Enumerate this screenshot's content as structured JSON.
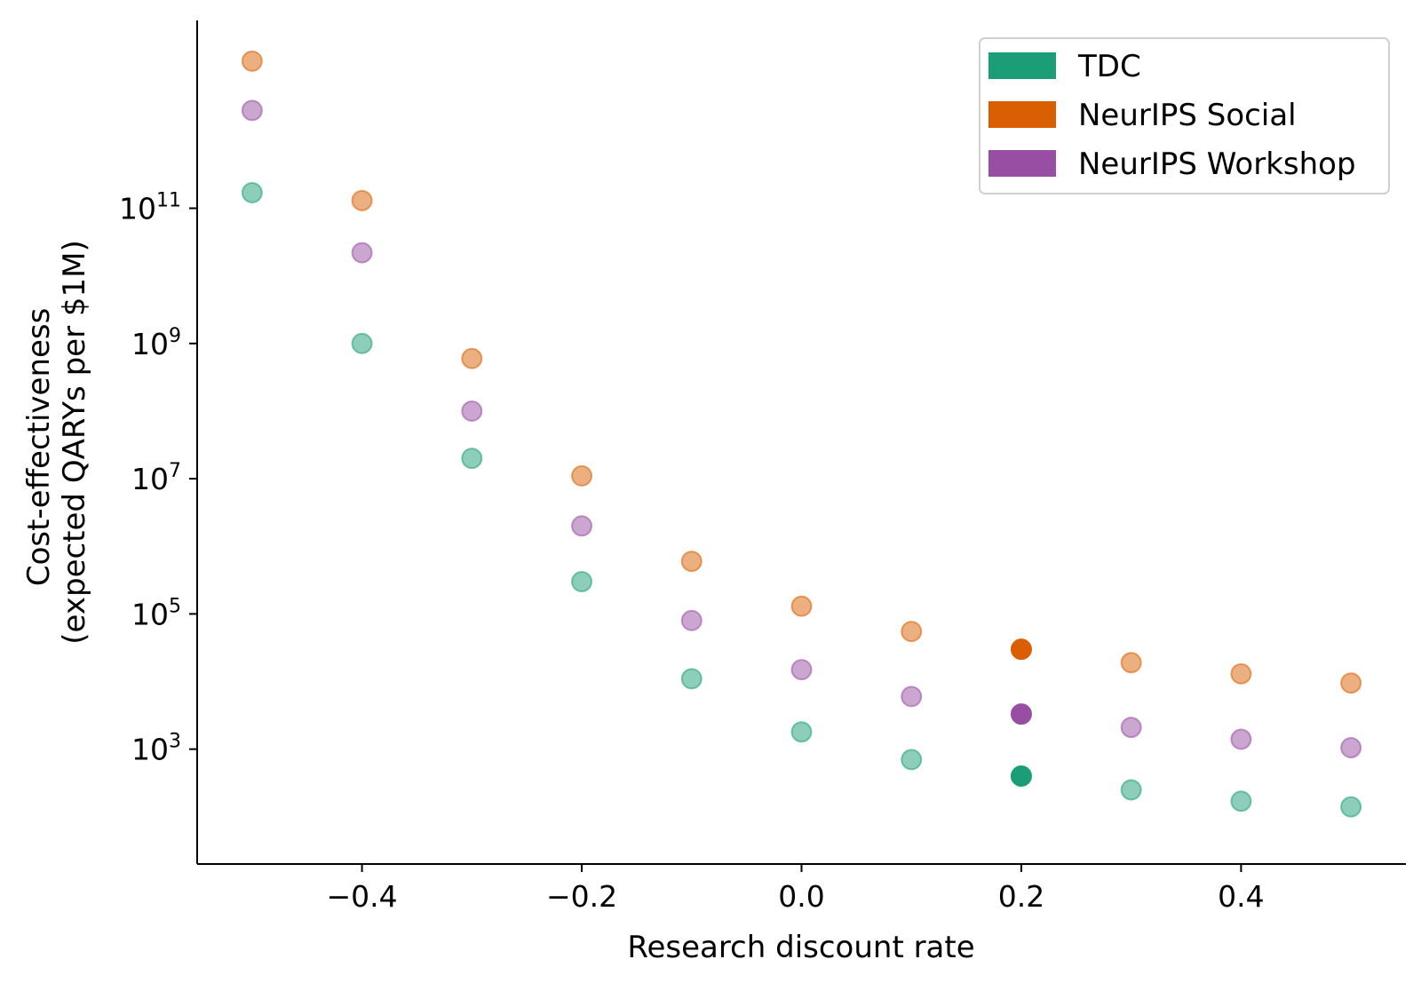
{
  "chart_data": {
    "type": "scatter",
    "xlabel": "Research discount rate",
    "ylabel_lines": [
      "Cost-effectiveness",
      "(expected QARYs per $1M)"
    ],
    "x_scale": "linear",
    "y_scale": "log",
    "xlim": [
      -0.55,
      0.55
    ],
    "ylim": [
      20,
      60000000000000
    ],
    "x_ticks": [
      -0.4,
      -0.2,
      0.0,
      0.2,
      0.4
    ],
    "x_tick_labels": [
      "−0.4",
      "−0.2",
      "0.0",
      "0.2",
      "0.4"
    ],
    "y_ticks": [
      1000,
      100000,
      10000000,
      1000000000,
      100000000000
    ],
    "y_tick_labels": [
      {
        "base": "10",
        "exp": "3"
      },
      {
        "base": "10",
        "exp": "5"
      },
      {
        "base": "10",
        "exp": "7"
      },
      {
        "base": "10",
        "exp": "9"
      },
      {
        "base": "10",
        "exp": "11"
      }
    ],
    "grid": false,
    "legend_position": "top-right",
    "x": [
      -0.5,
      -0.4,
      -0.3,
      -0.2,
      -0.1,
      0.0,
      0.1,
      0.2,
      0.3,
      0.4,
      0.5
    ],
    "highlight_x": 0.2,
    "series": [
      {
        "name": "TDC",
        "color": "#1b9e77",
        "values": [
          170000000000,
          1000000000,
          20000000,
          300000,
          11000,
          1800,
          700,
          400,
          250,
          170,
          140
        ]
      },
      {
        "name": "NeurIPS Social",
        "color": "#d95f02",
        "values": [
          15000000000000,
          130000000000,
          600000000,
          11000000,
          600000,
          130000,
          55000,
          30000,
          19000,
          13000,
          9500
        ]
      },
      {
        "name": "NeurIPS Workshop",
        "color": "#984ea3",
        "values": [
          2800000000000,
          22000000000,
          100000000,
          2000000,
          80000,
          15000,
          6000,
          3300,
          2100,
          1400,
          1050
        ]
      }
    ]
  }
}
